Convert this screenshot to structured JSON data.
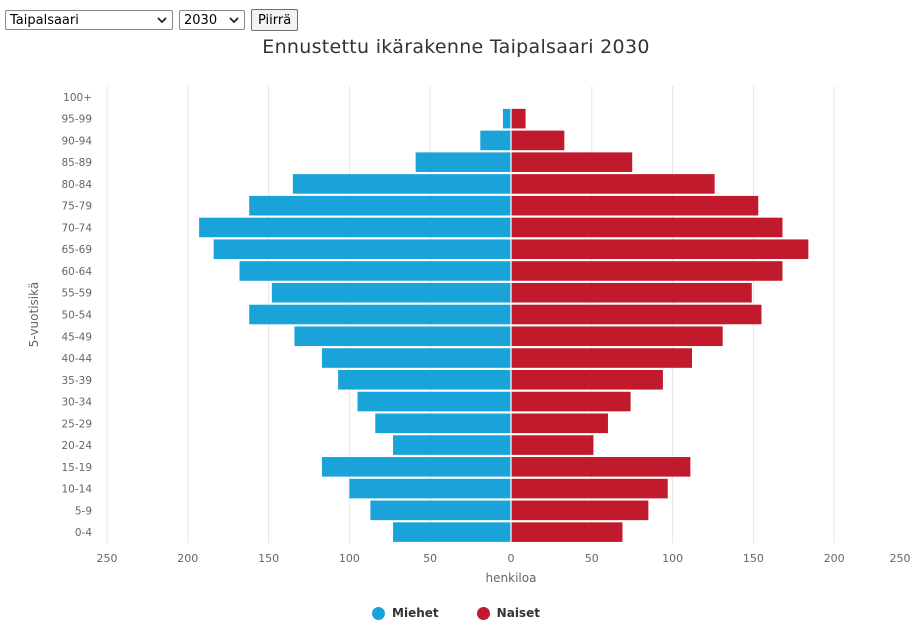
{
  "controls": {
    "municipality": "Taipalsaari",
    "year": "2030",
    "draw_button": "Piirrä"
  },
  "colors": {
    "men": "#1aa3d9",
    "women": "#c01a2c",
    "grid": "#e6e6e6",
    "axis_text": "#666666"
  },
  "icons": {
    "dropdown": "chevron-down-icon"
  },
  "chart_data": {
    "type": "bar",
    "orientation": "horizontal",
    "title": "Ennustettu ikärakenne Taipalsaari 2030",
    "xlabel": "henkiloa",
    "ylabel": "5-vuotisikä",
    "xlim": [
      -250,
      250
    ],
    "xticks": [
      -250,
      -200,
      -150,
      -100,
      -50,
      0,
      50,
      100,
      150,
      200,
      250
    ],
    "xtick_labels": [
      "250",
      "200",
      "150",
      "100",
      "50",
      "0",
      "50",
      "100",
      "150",
      "200",
      "250"
    ],
    "grid": true,
    "legend_position": "bottom",
    "categories": [
      "0-4",
      "5-9",
      "10-14",
      "15-19",
      "20-24",
      "25-29",
      "30-34",
      "35-39",
      "40-44",
      "45-49",
      "50-54",
      "55-59",
      "60-64",
      "65-69",
      "70-74",
      "75-79",
      "80-84",
      "85-89",
      "90-94",
      "95-99",
      "100+"
    ],
    "series": [
      {
        "name": "Miehet",
        "values": [
          73,
          87,
          100,
          117,
          73,
          84,
          95,
          107,
          117,
          134,
          162,
          148,
          168,
          184,
          193,
          162,
          135,
          59,
          19,
          5,
          0
        ]
      },
      {
        "name": "Naiset",
        "values": [
          69,
          85,
          97,
          111,
          51,
          60,
          74,
          94,
          112,
          131,
          155,
          149,
          168,
          184,
          168,
          153,
          126,
          75,
          33,
          9,
          0
        ]
      }
    ]
  }
}
